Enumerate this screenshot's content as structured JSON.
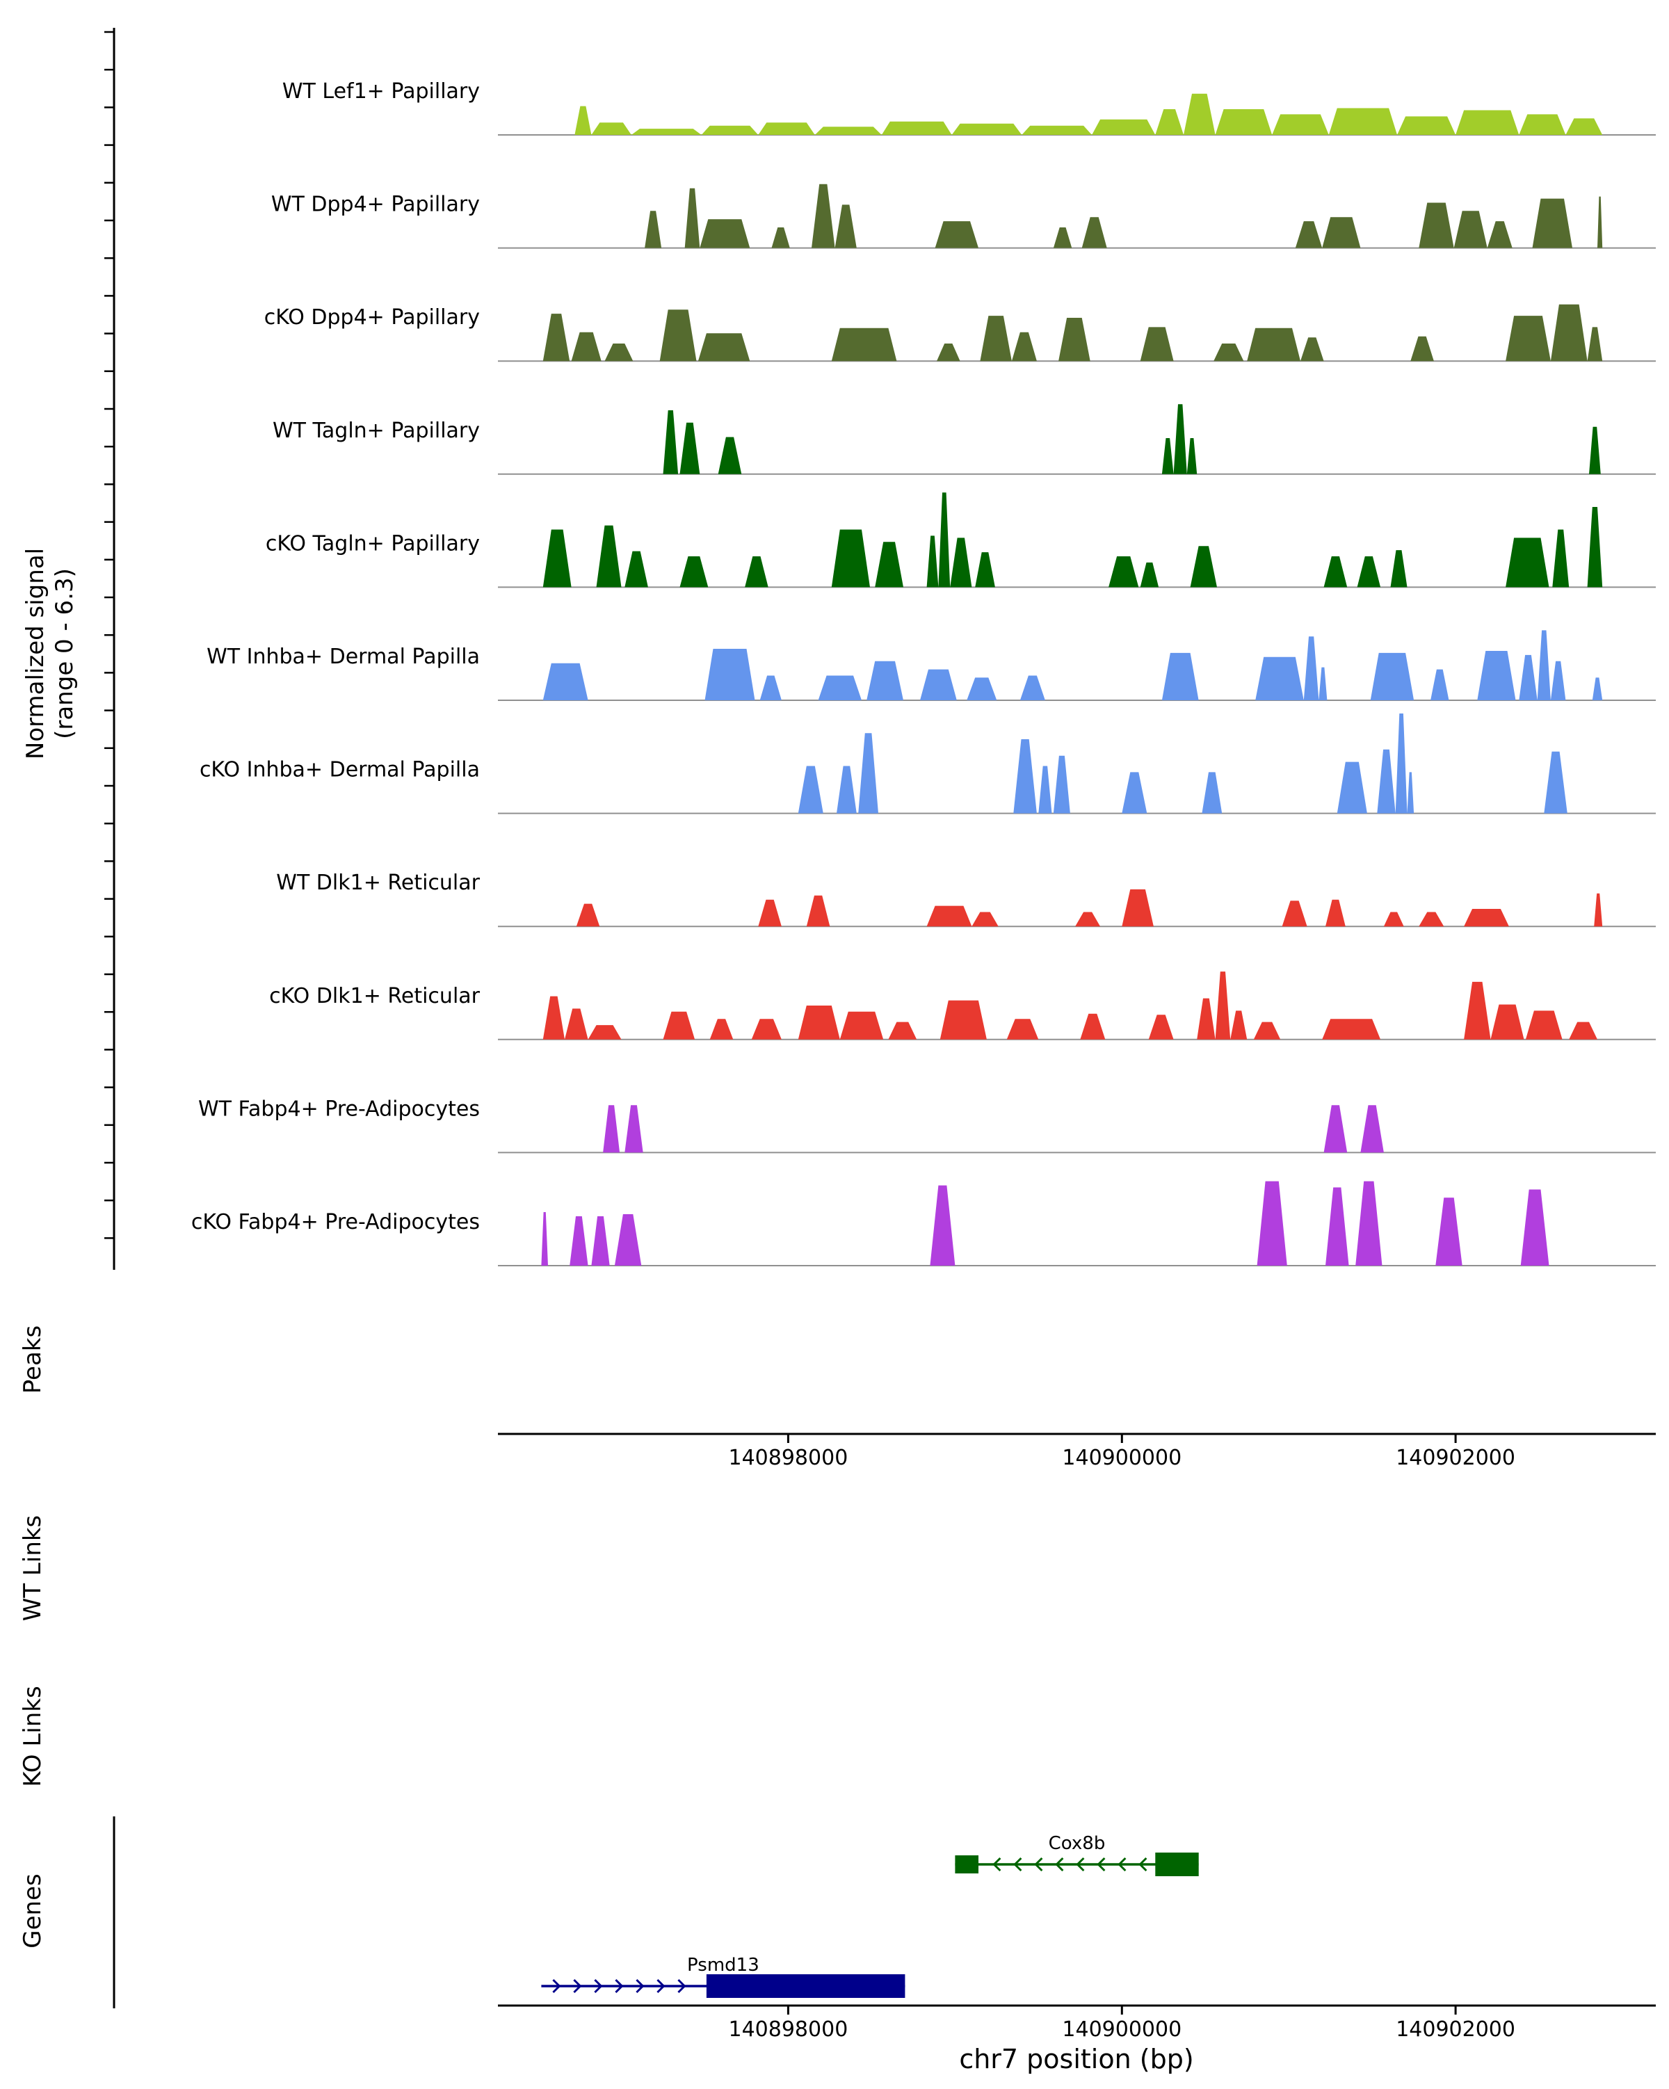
{
  "chart_data": {
    "type": "area",
    "title": "",
    "xlabel": "chr7 position (bp)",
    "ylabel_line1": "Normalized signal",
    "ylabel_line2": "(range 0 - 6.3)",
    "signal_range": [
      0,
      6.3
    ],
    "x_range_bp": [
      140896260,
      140903200
    ],
    "x_ticks": [
      {
        "bp": 140898000,
        "label": "140898000"
      },
      {
        "bp": 140900000,
        "label": "140900000"
      },
      {
        "bp": 140902000,
        "label": "140902000"
      }
    ],
    "section_labels": {
      "peaks": "Peaks",
      "wt_links": "WT Links",
      "ko_links": "KO Links",
      "genes": "Genes"
    },
    "tracks": [
      {
        "label": "WT Lef1+ Papillary",
        "color": "#A2CD2A",
        "peaks": [
          [
            140896720,
            140896820,
            0.28
          ],
          [
            140896820,
            140897060,
            0.12
          ],
          [
            140897060,
            140897480,
            0.06
          ],
          [
            140897480,
            140897820,
            0.09
          ],
          [
            140897820,
            140898160,
            0.12
          ],
          [
            140898160,
            140898560,
            0.08
          ],
          [
            140898560,
            140898980,
            0.13
          ],
          [
            140898980,
            140899400,
            0.11
          ],
          [
            140899400,
            140899820,
            0.09
          ],
          [
            140899820,
            140900200,
            0.15
          ],
          [
            140900200,
            140900370,
            0.25
          ],
          [
            140900370,
            140900560,
            0.4
          ],
          [
            140900560,
            140900900,
            0.25
          ],
          [
            140900900,
            140901240,
            0.2
          ],
          [
            140901240,
            140901650,
            0.26
          ],
          [
            140901650,
            140902000,
            0.18
          ],
          [
            140902000,
            140902380,
            0.24
          ],
          [
            140902380,
            140902660,
            0.2
          ],
          [
            140902660,
            140902880,
            0.16
          ]
        ]
      },
      {
        "label": "WT Dpp4+ Papillary",
        "color": "#556B2F",
        "peaks": [
          [
            140897140,
            140897240,
            0.36
          ],
          [
            140897380,
            140897470,
            0.58
          ],
          [
            140897470,
            140897770,
            0.28
          ],
          [
            140897900,
            140898010,
            0.2
          ],
          [
            140898140,
            140898280,
            0.62
          ],
          [
            140898280,
            140898410,
            0.42
          ],
          [
            140898880,
            140899140,
            0.26
          ],
          [
            140899590,
            140899700,
            0.2
          ],
          [
            140899760,
            140899910,
            0.3
          ],
          [
            140901040,
            140901200,
            0.26
          ],
          [
            140901200,
            140901430,
            0.3
          ],
          [
            140901780,
            140901990,
            0.44
          ],
          [
            140901990,
            140902190,
            0.36
          ],
          [
            140902190,
            140902340,
            0.26
          ],
          [
            140902460,
            140902700,
            0.48
          ],
          [
            140902850,
            140902880,
            0.5
          ]
        ]
      },
      {
        "label": "cKO Dpp4+ Papillary",
        "color": "#556B2F",
        "peaks": [
          [
            140896530,
            140896690,
            0.46
          ],
          [
            140896700,
            140896880,
            0.28
          ],
          [
            140896900,
            140897070,
            0.17
          ],
          [
            140897230,
            140897450,
            0.5
          ],
          [
            140897460,
            140897770,
            0.27
          ],
          [
            140898260,
            140898650,
            0.32
          ],
          [
            140898890,
            140899030,
            0.17
          ],
          [
            140899150,
            140899340,
            0.44
          ],
          [
            140899340,
            140899490,
            0.28
          ],
          [
            140899620,
            140899810,
            0.42
          ],
          [
            140900110,
            140900310,
            0.33
          ],
          [
            140900550,
            140900730,
            0.17
          ],
          [
            140900750,
            140901070,
            0.32
          ],
          [
            140901070,
            140901210,
            0.23
          ],
          [
            140901730,
            140901870,
            0.24
          ],
          [
            140902300,
            140902570,
            0.44
          ],
          [
            140902570,
            140902790,
            0.55
          ],
          [
            140902790,
            140902880,
            0.33
          ]
        ]
      },
      {
        "label": "WT Tagln+ Papillary",
        "color": "#006400",
        "peaks": [
          [
            140897250,
            140897340,
            0.62
          ],
          [
            140897350,
            140897470,
            0.5
          ],
          [
            140897580,
            140897720,
            0.36
          ],
          [
            140900240,
            140900310,
            0.35
          ],
          [
            140900310,
            140900390,
            0.68
          ],
          [
            140900390,
            140900450,
            0.35
          ],
          [
            140902800,
            140902870,
            0.46
          ]
        ]
      },
      {
        "label": "cKO Tagln+ Papillary",
        "color": "#006400",
        "peaks": [
          [
            140896530,
            140896700,
            0.56
          ],
          [
            140896850,
            140897000,
            0.6
          ],
          [
            140897020,
            140897160,
            0.35
          ],
          [
            140897350,
            140897520,
            0.3
          ],
          [
            140897740,
            140897880,
            0.3
          ],
          [
            140898260,
            140898490,
            0.56
          ],
          [
            140898520,
            140898690,
            0.44
          ],
          [
            140898830,
            140898900,
            0.5
          ],
          [
            140898900,
            140898970,
            0.92
          ],
          [
            140898970,
            140899100,
            0.48
          ],
          [
            140899120,
            140899240,
            0.34
          ],
          [
            140899920,
            140900100,
            0.3
          ],
          [
            140900110,
            140900220,
            0.24
          ],
          [
            140900410,
            140900570,
            0.4
          ],
          [
            140901210,
            140901350,
            0.3
          ],
          [
            140901410,
            140901550,
            0.3
          ],
          [
            140901610,
            140901710,
            0.36
          ],
          [
            140902300,
            140902560,
            0.48
          ],
          [
            140902580,
            140902680,
            0.56
          ],
          [
            140902790,
            140902880,
            0.78
          ]
        ]
      },
      {
        "label": "WT Inhba+ Dermal Papilla",
        "color": "#6495ED",
        "peaks": [
          [
            140896530,
            140896800,
            0.36
          ],
          [
            140897500,
            140897800,
            0.5
          ],
          [
            140897830,
            140897960,
            0.24
          ],
          [
            140898180,
            140898440,
            0.24
          ],
          [
            140898470,
            140898690,
            0.38
          ],
          [
            140898790,
            140899010,
            0.3
          ],
          [
            140899070,
            140899250,
            0.22
          ],
          [
            140899390,
            140899540,
            0.24
          ],
          [
            140900240,
            140900460,
            0.46
          ],
          [
            140900800,
            140901090,
            0.42
          ],
          [
            140901090,
            140901180,
            0.62
          ],
          [
            140901180,
            140901230,
            0.32
          ],
          [
            140901490,
            140901750,
            0.46
          ],
          [
            140901850,
            140901960,
            0.3
          ],
          [
            140902130,
            140902360,
            0.48
          ],
          [
            140902380,
            140902490,
            0.44
          ],
          [
            140902490,
            140902570,
            0.68
          ],
          [
            140902570,
            140902660,
            0.38
          ],
          [
            140902820,
            140902880,
            0.22
          ]
        ]
      },
      {
        "label": "cKO Inhba+ Dermal Papilla",
        "color": "#6495ED",
        "peaks": [
          [
            140898060,
            140898210,
            0.46
          ],
          [
            140898290,
            140898410,
            0.46
          ],
          [
            140898420,
            140898540,
            0.78
          ],
          [
            140899350,
            140899490,
            0.72
          ],
          [
            140899500,
            140899580,
            0.46
          ],
          [
            140899590,
            140899690,
            0.56
          ],
          [
            140900000,
            140900150,
            0.4
          ],
          [
            140900480,
            140900600,
            0.4
          ],
          [
            140901290,
            140901470,
            0.5
          ],
          [
            140901530,
            140901640,
            0.62
          ],
          [
            140901640,
            140901710,
            0.97
          ],
          [
            140901710,
            140901750,
            0.4
          ],
          [
            140902530,
            140902670,
            0.6
          ]
        ]
      },
      {
        "label": "WT Dlk1+ Reticular",
        "color": "#E8392F",
        "peaks": [
          [
            140896730,
            140896870,
            0.22
          ],
          [
            140897820,
            140897960,
            0.26
          ],
          [
            140898110,
            140898250,
            0.3
          ],
          [
            140898830,
            140899100,
            0.2
          ],
          [
            140899100,
            140899260,
            0.14
          ],
          [
            140899720,
            140899870,
            0.14
          ],
          [
            140900000,
            140900190,
            0.36
          ],
          [
            140900960,
            140901110,
            0.25
          ],
          [
            140901220,
            140901340,
            0.26
          ],
          [
            140901570,
            140901690,
            0.14
          ],
          [
            140901780,
            140901930,
            0.14
          ],
          [
            140902050,
            140902320,
            0.17
          ],
          [
            140902830,
            140902880,
            0.32
          ]
        ]
      },
      {
        "label": "cKO Dlk1+ Reticular",
        "color": "#E8392F",
        "peaks": [
          [
            140896530,
            140896660,
            0.42
          ],
          [
            140896660,
            140896800,
            0.3
          ],
          [
            140896800,
            140897000,
            0.14
          ],
          [
            140897250,
            140897440,
            0.27
          ],
          [
            140897530,
            140897670,
            0.2
          ],
          [
            140897780,
            140897960,
            0.2
          ],
          [
            140898060,
            140898310,
            0.33
          ],
          [
            140898310,
            140898570,
            0.27
          ],
          [
            140898600,
            140898770,
            0.17
          ],
          [
            140898910,
            140899190,
            0.38
          ],
          [
            140899310,
            140899500,
            0.2
          ],
          [
            140899750,
            140899900,
            0.25
          ],
          [
            140900160,
            140900310,
            0.24
          ],
          [
            140900450,
            140900560,
            0.4
          ],
          [
            140900560,
            140900650,
            0.66
          ],
          [
            140900650,
            140900750,
            0.28
          ],
          [
            140900790,
            140900950,
            0.17
          ],
          [
            140901200,
            140901550,
            0.2
          ],
          [
            140902050,
            140902210,
            0.56
          ],
          [
            140902210,
            140902410,
            0.34
          ],
          [
            140902420,
            140902640,
            0.28
          ],
          [
            140902680,
            140902850,
            0.17
          ]
        ]
      },
      {
        "label": "WT Fabp4+ Pre-Adipocytes",
        "color": "#B13FDE",
        "peaks": [
          [
            140896890,
            140896990,
            0.46
          ],
          [
            140897020,
            140897130,
            0.46
          ],
          [
            140901210,
            140901350,
            0.46
          ],
          [
            140901430,
            140901570,
            0.46
          ]
        ]
      },
      {
        "label": "cKO Fabp4+ Pre-Adipocytes",
        "color": "#B13FDE",
        "peaks": [
          [
            140896520,
            140896560,
            0.52
          ],
          [
            140896690,
            140896800,
            0.48
          ],
          [
            140896820,
            140896930,
            0.48
          ],
          [
            140896960,
            140897120,
            0.5
          ],
          [
            140898850,
            140899000,
            0.78
          ],
          [
            140900810,
            140900990,
            0.82
          ],
          [
            140901220,
            140901360,
            0.76
          ],
          [
            140901400,
            140901560,
            0.82
          ],
          [
            140901880,
            140902040,
            0.66
          ],
          [
            140902390,
            140902560,
            0.74
          ]
        ]
      }
    ],
    "genes": [
      {
        "name": "Cox8b",
        "color": "#006400",
        "strand": "-",
        "start": 140899000,
        "end": 140900460,
        "exons": [
          {
            "start": 140899000,
            "end": 140899140,
            "tall": false
          },
          {
            "start": 140900200,
            "end": 140900460,
            "tall": true
          }
        ]
      },
      {
        "name": "Psmd13",
        "color": "#00008B",
        "strand": "+",
        "start": 140896520,
        "end": 140898700,
        "exons": [
          {
            "start": 140897510,
            "end": 140898700,
            "tall": true
          }
        ]
      }
    ]
  }
}
